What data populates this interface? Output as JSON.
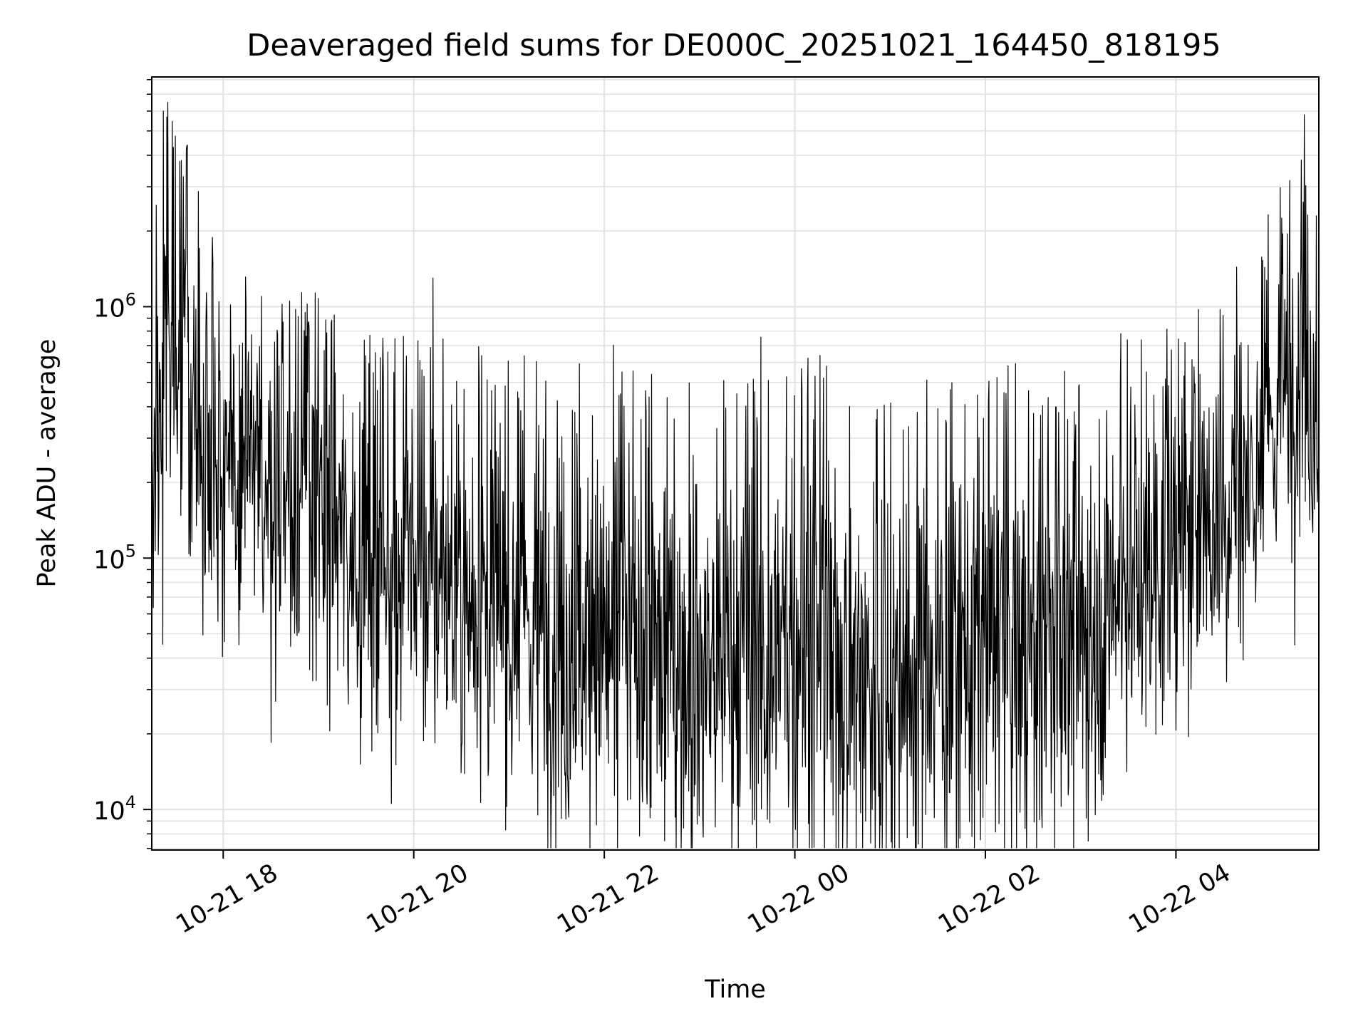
{
  "chart_data": {
    "type": "line",
    "title": "Deaveraged field sums for DE000C_20251021_164450_818195",
    "xlabel": "Time",
    "ylabel": "Peak ADU - average",
    "yscale": "log",
    "xlim_hours": [
      -0.75,
      11.5
    ],
    "ylim": [
      6900,
      8200000
    ],
    "x_reference": "2025-10-21 18:00",
    "grid": true,
    "line_color": "#000000",
    "x_ticks": [
      {
        "hours": 0,
        "label": "10-21 18"
      },
      {
        "hours": 2,
        "label": "10-21 20"
      },
      {
        "hours": 4,
        "label": "10-21 22"
      },
      {
        "hours": 6,
        "label": "10-22 00"
      },
      {
        "hours": 8,
        "label": "10-22 02"
      },
      {
        "hours": 10,
        "label": "10-22 04"
      }
    ],
    "y_ticks": [
      {
        "value": 10000,
        "base": "10",
        "exp": "4"
      },
      {
        "value": 100000,
        "base": "10",
        "exp": "5"
      },
      {
        "value": 1000000,
        "base": "10",
        "exp": "6"
      }
    ],
    "series": [
      {
        "name": "Peak ADU - average",
        "samples_per_hour": 190,
        "envelope": {
          "hours": [
            -0.75,
            -0.6,
            -0.5,
            -0.35,
            -0.2,
            0.0,
            0.5,
            1.0,
            1.5,
            2.0,
            2.5,
            3.0,
            3.5,
            4.0,
            4.5,
            5.0,
            5.5,
            6.0,
            6.5,
            6.8,
            7.0,
            7.5,
            8.0,
            8.5,
            9.0,
            9.5,
            10.0,
            10.5,
            10.8,
            11.0,
            11.2,
            11.35,
            11.5
          ],
          "median": [
            180000,
            520000,
            800000,
            500000,
            300000,
            220000,
            170000,
            140000,
            105000,
            85000,
            75000,
            60000,
            50000,
            45000,
            42000,
            38000,
            35000,
            45000,
            42000,
            30000,
            32000,
            40000,
            45000,
            40000,
            50000,
            80000,
            120000,
            160000,
            220000,
            320000,
            500000,
            700000,
            350000
          ],
          "spread_dex": [
            0.35,
            0.4,
            0.4,
            0.35,
            0.33,
            0.33,
            0.34,
            0.35,
            0.36,
            0.37,
            0.38,
            0.4,
            0.42,
            0.43,
            0.44,
            0.45,
            0.45,
            0.45,
            0.45,
            0.45,
            0.45,
            0.44,
            0.43,
            0.42,
            0.41,
            0.39,
            0.37,
            0.35,
            0.35,
            0.34,
            0.34,
            0.35,
            0.35
          ]
        },
        "notable_points": [
          {
            "hours": -0.63,
            "value": 6000000
          },
          {
            "hours": -0.58,
            "value": 6500000
          },
          {
            "hours": 2.2,
            "value": 1300000
          },
          {
            "hours": 3.3,
            "value": 9500
          },
          {
            "hours": 6.4,
            "value": 9500
          },
          {
            "hours": 11.35,
            "value": 5800000
          }
        ]
      }
    ]
  }
}
